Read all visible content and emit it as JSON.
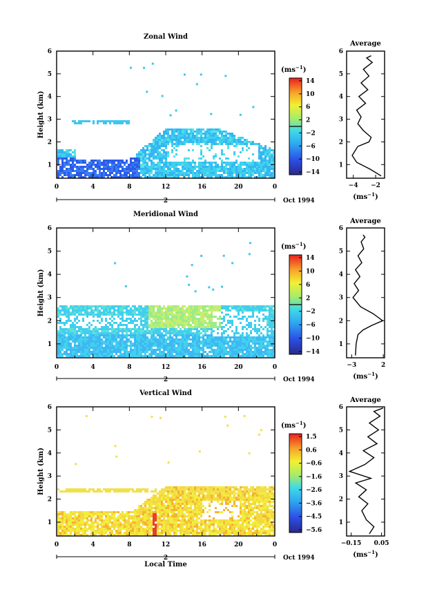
{
  "chart_data": [
    {
      "type": "heatmap",
      "title": "Zonal Wind",
      "ylabel": "Height (km)",
      "xticks": [
        "0",
        "4",
        "8",
        "12",
        "16",
        "20",
        "0"
      ],
      "yticks": [
        "1",
        "2",
        "3",
        "4",
        "5",
        "6"
      ],
      "xlim": [
        0,
        24
      ],
      "ylim": [
        0.4,
        6
      ],
      "date_label": "2",
      "month_label": "Oct 1994",
      "colorbar": {
        "units": "(ms",
        "units_exp": "−1",
        "units_close": ")",
        "tick_labels": [
          "14",
          "10",
          "6",
          "2",
          "−2",
          "−6",
          "−10",
          "−14"
        ],
        "range": [
          -16,
          16
        ],
        "zero_line": 0
      },
      "profile": {
        "title": "Average",
        "xlabel": "(ms",
        "xlabel_exp": "−1",
        "xlabel_close": ")",
        "xticks": [
          "−4",
          "−2"
        ],
        "xlim": [
          -4.6,
          -1.2
        ],
        "xtick_values": [
          -4,
          -2
        ],
        "yticks": [
          "1",
          "2",
          "3",
          "4",
          "5",
          "6"
        ],
        "ylim": [
          0.4,
          6
        ],
        "points": [
          [
            -1.5,
            0.5
          ],
          [
            -2.5,
            0.8
          ],
          [
            -3.7,
            1.1
          ],
          [
            -4.1,
            1.4
          ],
          [
            -3.6,
            1.8
          ],
          [
            -2.6,
            2.0
          ],
          [
            -2.4,
            2.2
          ],
          [
            -3.1,
            2.5
          ],
          [
            -3.6,
            2.8
          ],
          [
            -3.3,
            3.1
          ],
          [
            -3.7,
            3.4
          ],
          [
            -2.9,
            3.7
          ],
          [
            -3.5,
            4.0
          ],
          [
            -2.7,
            4.3
          ],
          [
            -3.3,
            4.6
          ],
          [
            -2.6,
            4.9
          ],
          [
            -3.1,
            5.2
          ],
          [
            -2.3,
            5.5
          ],
          [
            -2.8,
            5.7
          ],
          [
            -2.4,
            5.8
          ]
        ]
      }
    },
    {
      "type": "heatmap",
      "title": "Meridional Wind",
      "ylabel": "Height (km)",
      "xticks": [
        "0",
        "4",
        "8",
        "12",
        "16",
        "20",
        "0"
      ],
      "yticks": [
        "1",
        "2",
        "3",
        "4",
        "5",
        "6"
      ],
      "xlim": [
        0,
        24
      ],
      "ylim": [
        0.4,
        6
      ],
      "date_label": "2",
      "month_label": "Oct 1994",
      "colorbar": {
        "units": "(ms",
        "units_exp": "−1",
        "units_close": ")",
        "tick_labels": [
          "14",
          "10",
          "6",
          "2",
          "−2",
          "−6",
          "−10",
          "−14"
        ],
        "range": [
          -16,
          16
        ],
        "zero_line": 0
      },
      "profile": {
        "title": "Average",
        "xlabel": "(ms",
        "xlabel_exp": "−1",
        "xlabel_close": ")",
        "xticks": [
          "−3",
          "2"
        ],
        "xlim": [
          -3.8,
          2.2
        ],
        "xtick_values": [
          -3,
          2
        ],
        "yticks": [
          "1",
          "2",
          "3",
          "4",
          "5",
          "6"
        ],
        "ylim": [
          0.4,
          6
        ],
        "points": [
          [
            -2.4,
            0.5
          ],
          [
            -2.3,
            1.0
          ],
          [
            -2.0,
            1.4
          ],
          [
            -1.2,
            1.6
          ],
          [
            0.2,
            1.8
          ],
          [
            1.9,
            2.0
          ],
          [
            0.4,
            2.3
          ],
          [
            -1.6,
            2.6
          ],
          [
            -2.8,
            3.0
          ],
          [
            -1.9,
            3.3
          ],
          [
            -2.6,
            3.6
          ],
          [
            -1.7,
            3.9
          ],
          [
            -2.4,
            4.2
          ],
          [
            -1.4,
            4.5
          ],
          [
            -2.0,
            4.8
          ],
          [
            -1.1,
            5.1
          ],
          [
            -1.5,
            5.4
          ],
          [
            -0.9,
            5.6
          ],
          [
            -1.2,
            5.7
          ]
        ]
      }
    },
    {
      "type": "heatmap",
      "title": "Vertical Wind",
      "ylabel": "Height (km)",
      "xlabel": "Local Time",
      "xticks": [
        "0",
        "4",
        "8",
        "12",
        "16",
        "20",
        "0"
      ],
      "yticks": [
        "1",
        "2",
        "3",
        "4",
        "5",
        "6"
      ],
      "xlim": [
        0,
        24
      ],
      "ylim": [
        0.4,
        6
      ],
      "date_label": "2",
      "month_label": "Oct 1994",
      "colorbar": {
        "units": "(ms",
        "units_exp": "−1",
        "units_close": ")",
        "tick_labels": [
          "1.5",
          "0.6",
          "−0.6",
          "−1.6",
          "−2.6",
          "−3.6",
          "−4.5",
          "−5.6"
        ],
        "range": [
          -6,
          2
        ],
        "zero_line": null
      },
      "profile": {
        "title": "Average",
        "xlabel": "(ms",
        "xlabel_exp": "−1",
        "xlabel_close": ")",
        "xticks": [
          "−0.15",
          "0.05"
        ],
        "xlim": [
          -0.18,
          0.07
        ],
        "xtick_values": [
          -0.15,
          0.05
        ],
        "yticks": [
          "1",
          "2",
          "3",
          "4",
          "5",
          "6"
        ],
        "ylim": [
          0.4,
          6
        ],
        "points": [
          [
            -0.03,
            0.5
          ],
          [
            0.0,
            0.8
          ],
          [
            -0.05,
            1.1
          ],
          [
            -0.08,
            1.5
          ],
          [
            -0.04,
            1.8
          ],
          [
            -0.1,
            2.1
          ],
          [
            -0.05,
            2.4
          ],
          [
            -0.12,
            2.7
          ],
          [
            -0.02,
            2.9
          ],
          [
            -0.16,
            3.2
          ],
          [
            -0.06,
            3.5
          ],
          [
            0.0,
            3.8
          ],
          [
            -0.07,
            4.1
          ],
          [
            0.02,
            4.4
          ],
          [
            -0.04,
            4.7
          ],
          [
            0.03,
            5.0
          ],
          [
            -0.03,
            5.3
          ],
          [
            0.04,
            5.6
          ],
          [
            0.0,
            5.8
          ],
          [
            0.06,
            5.95
          ]
        ]
      }
    }
  ]
}
